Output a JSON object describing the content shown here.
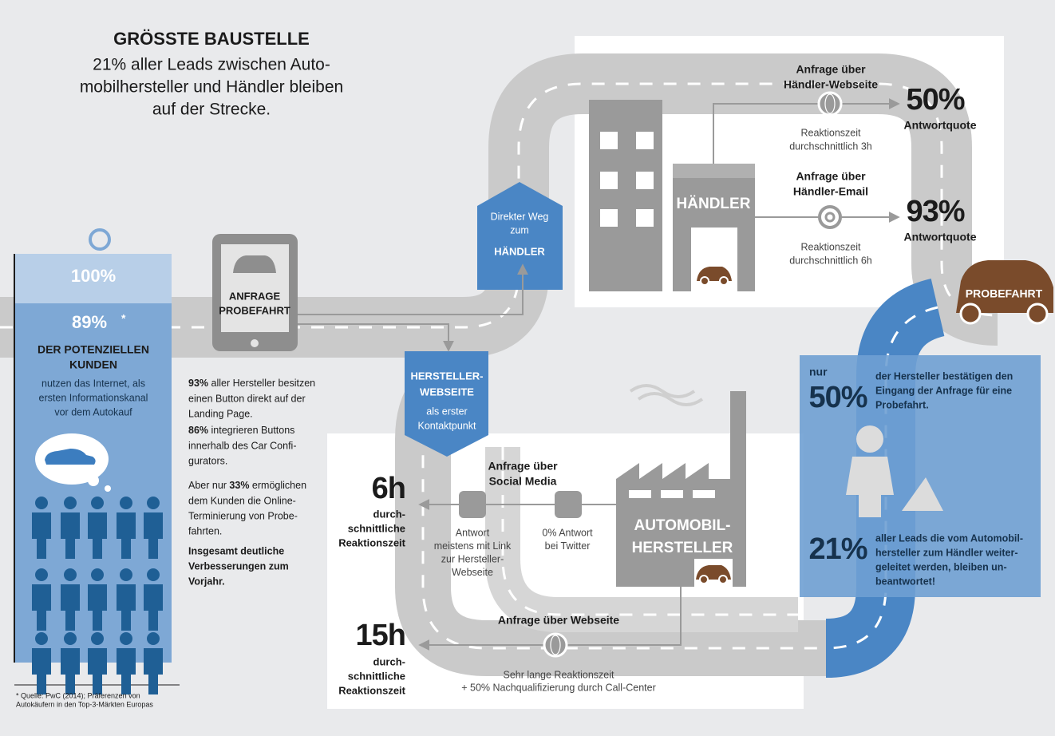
{
  "header": {
    "title": "GRÖSSTE BAUSTELLE",
    "subtitle": [
      "21% aller Leads zwischen Auto-",
      "mobilhersteller und Händler bleiben",
      "auf der Strecke."
    ]
  },
  "internet_panel": {
    "total": "100%",
    "share": "89%",
    "footnote_mark": "*",
    "heading": [
      "DER POTENZIELLEN",
      "KUNDEN"
    ],
    "text": [
      "nutzen das Internet, als",
      "ersten Informationskanal",
      "vor dem Autokauf"
    ]
  },
  "source": [
    "* Quelle: PwC (2014); Präferenzen von",
    "Autokäufern in den Top-3-Märkten Europas"
  ],
  "tablet": {
    "label": [
      "ANFRAGE",
      "PROBEFAHRT"
    ]
  },
  "facts": [
    {
      "highlight": "93%",
      "lines": [
        " aller Hersteller besitzen",
        "einen Button direkt auf der",
        "Landing Page."
      ]
    },
    {
      "highlight": "86%",
      "lines": [
        " integrieren Buttons",
        "innerhalb des Car Confi-",
        "gurators."
      ]
    },
    {
      "lead": "Aber nur ",
      "highlight": "33%",
      "lines": [
        " ermöglichen",
        "dem Kunden die Online-",
        "Terminierung von Probe-",
        "fahrten."
      ]
    },
    {
      "conclusion": [
        "Insgesamt deutliche",
        "Verbesserungen zum",
        "Vorjahr."
      ]
    }
  ],
  "direct_sign": {
    "text": [
      "Direkter Weg",
      "zum"
    ],
    "target": "HÄNDLER"
  },
  "manufacturer_sign": {
    "title": [
      "HERSTELLER-",
      "WEBSEITE"
    ],
    "text": [
      "als erster",
      "Kontaktpunkt"
    ]
  },
  "dealer": {
    "label": "HÄNDLER",
    "channels": [
      {
        "title": [
          "Anfrage über",
          "Händler-Webseite"
        ],
        "note": [
          "Reaktionszeit",
          "durchschnittlich 3h"
        ],
        "rate": "50%",
        "rate_label": "Antwortquote"
      },
      {
        "title": [
          "Anfrage über",
          "Händler-Email"
        ],
        "note": [
          "Reaktionszeit",
          "durchschnittlich 6h"
        ],
        "rate": "93%",
        "rate_label": "Antwortquote"
      }
    ]
  },
  "test_drive": "PROBEFAHRT",
  "summary": {
    "confirm": {
      "prefix": "nur",
      "value": "50%",
      "text": [
        "der Hersteller bestätigen den",
        "Eingang der Anfrage für eine",
        "Probefahrt."
      ]
    },
    "unanswered": {
      "value": "21%",
      "text": [
        "aller Leads die vom Automobil-",
        "hersteller zum Händler weiter-",
        "geleitet werden, bleiben un-",
        "beantwortet!"
      ]
    }
  },
  "manufacturer": {
    "label": [
      "AUTOMOBIL-",
      "HERSTELLER"
    ],
    "social": {
      "title": [
        "Anfrage über",
        "Social Media"
      ],
      "facebook_note": [
        "Antwort",
        "meistens mit Link",
        "zur Hersteller-",
        "Webseite"
      ],
      "twitter_note": [
        "0% Antwort",
        "bei Twitter"
      ],
      "time": "6h",
      "time_label": [
        "durch-",
        "schnittliche",
        "Reaktionszeit"
      ]
    },
    "web": {
      "title": "Anfrage über Webseite",
      "note": [
        "Sehr lange Reaktionszeit",
        "+ 50% Nachqualifizierung durch Call-Center"
      ],
      "time": "15h",
      "time_label": [
        "durch-",
        "schnittliche",
        "Reaktionszeit"
      ]
    }
  }
}
